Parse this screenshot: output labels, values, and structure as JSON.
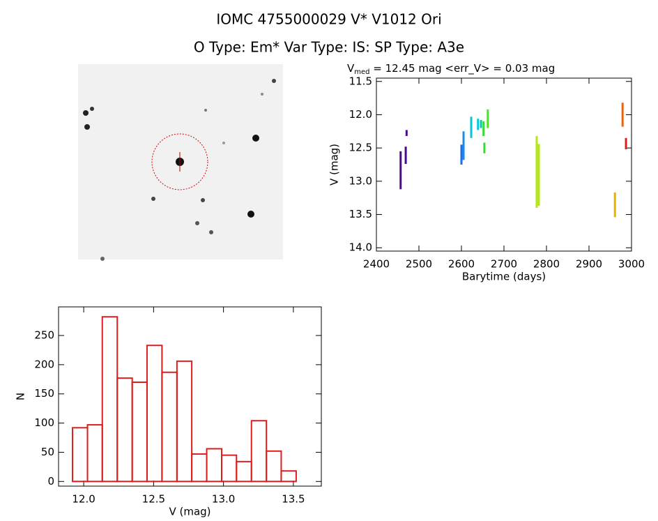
{
  "header": {
    "title": "IOMC 4755000029    V* V1012 Ori",
    "subtitle": "O Type: Em*  Var Type: IS:  SP Type: A3e"
  },
  "chart_data": [
    {
      "type": "line",
      "title_main": "V",
      "title_sub": "med",
      "title_rest": " = 12.45 mag <err_V> = 0.03 mag",
      "x_label": "Barytime (days)",
      "y_label": "V (mag)",
      "xlim": [
        2400,
        3000
      ],
      "xticks": [
        2400,
        2500,
        2600,
        2700,
        2800,
        2900,
        3000
      ],
      "ylim": [
        14.05,
        11.45
      ],
      "y_inverted": true,
      "yticks": [
        11.5,
        {
          "value": 12,
          "label": "12.0"
        },
        12.5,
        {
          "value": 13,
          "label": "13.0"
        },
        13.5,
        {
          "value": 14,
          "label": "14.0"
        }
      ],
      "series": [
        {
          "color": "#4b0a8c",
          "x": [
            2457,
            2457
          ],
          "values": [
            12.55,
            13.12
          ]
        },
        {
          "color": "#4b0a8c",
          "x": [
            2469,
            2469
          ],
          "values": [
            12.48,
            12.74
          ]
        },
        {
          "color": "#4b0a8c",
          "x": [
            2471,
            2471
          ],
          "values": [
            12.23,
            12.32
          ]
        },
        {
          "color": "#1e6ee6",
          "x": [
            2600,
            2600
          ],
          "values": [
            12.45,
            12.75
          ]
        },
        {
          "color": "#1e8ce6",
          "x": [
            2605,
            2605
          ],
          "values": [
            12.25,
            12.68
          ]
        },
        {
          "color": "#00c8dc",
          "x": [
            2623,
            2623
          ],
          "values": [
            12.03,
            12.35
          ]
        },
        {
          "color": "#00c8dc",
          "x": [
            2639,
            2639
          ],
          "values": [
            12.06,
            12.23
          ]
        },
        {
          "color": "#00c8b4",
          "x": [
            2646,
            2646
          ],
          "values": [
            12.08,
            12.2
          ]
        },
        {
          "color": "#32dc32",
          "x": [
            2652,
            2652
          ],
          "values": [
            12.1,
            12.32
          ]
        },
        {
          "color": "#32dc32",
          "x": [
            2654,
            2654
          ],
          "values": [
            12.42,
            12.58
          ]
        },
        {
          "color": "#50dc32",
          "x": [
            2662,
            2662
          ],
          "values": [
            11.92,
            12.2
          ]
        },
        {
          "color": "#b4e61e",
          "x": [
            2777,
            2777
          ],
          "values": [
            12.32,
            13.4
          ]
        },
        {
          "color": "#b4e61e",
          "x": [
            2782,
            2782
          ],
          "values": [
            12.44,
            13.37
          ]
        },
        {
          "color": "#e6b400",
          "x": [
            2961,
            2961
          ],
          "values": [
            13.17,
            13.54
          ]
        },
        {
          "color": "#e66414",
          "x": [
            2979,
            2979
          ],
          "values": [
            11.82,
            12.18
          ]
        },
        {
          "color": "#dc1e1e",
          "x": [
            2987,
            2987
          ],
          "values": [
            12.35,
            12.52
          ]
        }
      ]
    },
    {
      "type": "histogram",
      "x_label": "V (mag)",
      "y_label": "N",
      "color": "#dc1e1e",
      "bins": [
        11.92,
        12.027,
        12.133,
        12.24,
        12.347,
        12.453,
        12.56,
        12.667,
        12.773,
        12.88,
        12.987,
        13.093,
        13.2,
        13.307,
        13.413,
        13.52
      ],
      "values": [
        92,
        97,
        282,
        177,
        170,
        233,
        187,
        206,
        47,
        56,
        45,
        34,
        104,
        52,
        18
      ],
      "xlim": [
        11.82,
        13.7
      ],
      "xticks": [
        {
          "value": 12,
          "label": "12.0"
        },
        12.5,
        {
          "value": 13,
          "label": "13.0"
        },
        13.5
      ],
      "ylim": [
        -8,
        299
      ],
      "yticks": [
        0,
        50,
        100,
        150,
        200,
        250
      ]
    }
  ]
}
